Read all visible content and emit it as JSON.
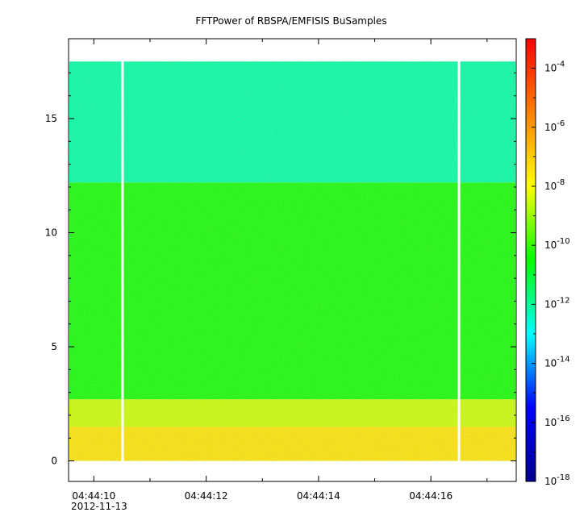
{
  "chart_data": {
    "type": "heatmap",
    "title": "FFTPower of RBSPA/EMFISIS  BuSamples",
    "xlabel": "",
    "ylabel": "",
    "date_label": "2012-11-13",
    "x_range": [
      "04:44:09.55",
      "04:44:17.52"
    ],
    "x_ticks": [
      {
        "time": "04:44:10",
        "label": "04:44:10"
      },
      {
        "time": "04:44:12",
        "label": "04:44:12"
      },
      {
        "time": "04:44:14",
        "label": "04:44:14"
      },
      {
        "time": "04:44:16",
        "label": "04:44:16"
      }
    ],
    "x_minor_ticks": [
      "04:44:11",
      "04:44:13",
      "04:44:15",
      "04:44:17"
    ],
    "ylim": [
      -0.9,
      18.5
    ],
    "y_ticks": [
      0,
      5,
      10,
      15
    ],
    "data_gaps": [
      {
        "start": "04:44:10.49",
        "end": "04:44:10.53"
      },
      {
        "start": "04:44:16.48",
        "end": "04:44:16.52"
      }
    ],
    "frequency_coverage": {
      "min": 0,
      "max": 17.5
    },
    "spectral_bands": [
      {
        "from": 0,
        "to": 1.5,
        "log10_power": -7.5
      },
      {
        "from": 1.5,
        "to": 2.7,
        "log10_power": -8.5
      },
      {
        "from": 2.7,
        "to": 12.2,
        "log10_power": -10.3
      },
      {
        "from": 12.2,
        "to": 17.5,
        "log10_power": -12.1
      }
    ],
    "colorbar": {
      "scale": "log",
      "range": [
        1e-18,
        0.001
      ],
      "tick_exponents": [
        -4,
        -6,
        -8,
        -10,
        -12,
        -14,
        -16,
        -18
      ],
      "tick_base": "10",
      "colors": [
        "#00008b",
        "#0000ff",
        "#00ffff",
        "#00ff00",
        "#ffff00",
        "#ff8000",
        "#ff0000"
      ]
    },
    "grid": false
  }
}
